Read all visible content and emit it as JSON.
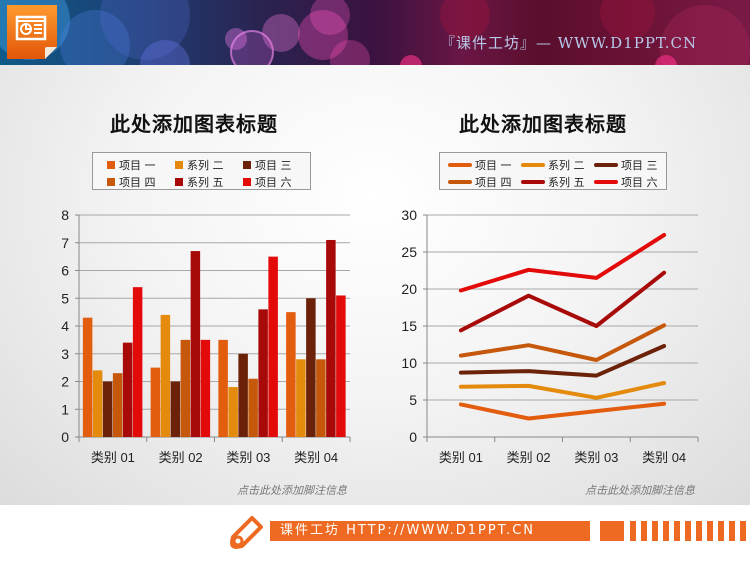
{
  "header": {
    "banner_text": "『课件工坊』— WWW.D1PPT.CN",
    "app_icon": "presentation-icon"
  },
  "colors": {
    "s1": "#e35d0e",
    "s2": "#e48a0c",
    "s3": "#6b2208",
    "s4": "#c5580a",
    "s5": "#a80a0a",
    "s6": "#e30a0a",
    "footer_orange": "#ee6a22"
  },
  "left_chart": {
    "title": "此处添加图表标题",
    "legend": [
      "项目 一",
      "系列 二",
      "项目 三",
      "项目 四",
      "系列 五",
      "项目 六"
    ],
    "y_ticks": [
      "0",
      "1",
      "2",
      "3",
      "4",
      "5",
      "6",
      "7",
      "8"
    ],
    "categories": [
      "类别 01",
      "类别 02",
      "类别 03",
      "类别 04"
    ],
    "footnote": "点击此处添加脚注信息"
  },
  "right_chart": {
    "title": "此处添加图表标题",
    "legend": [
      "项目 一",
      "系列 二",
      "项目 三",
      "项目 四",
      "系列 五",
      "项目 六"
    ],
    "y_ticks": [
      "0",
      "5",
      "10",
      "15",
      "20",
      "25",
      "30"
    ],
    "categories": [
      "类别 01",
      "类别 02",
      "类别 03",
      "类别 04"
    ],
    "footnote": "点击此处添加脚注信息"
  },
  "footer": {
    "text": "课件工坊 HTTP://WWW.D1PPT.CN",
    "icon": "pencil-icon"
  },
  "chart_data": [
    {
      "type": "bar",
      "title": "此处添加图表标题",
      "categories": [
        "类别 01",
        "类别 02",
        "类别 03",
        "类别 04"
      ],
      "series": [
        {
          "name": "项目 一",
          "values": [
            4.3,
            2.5,
            3.5,
            4.5
          ]
        },
        {
          "name": "系列 二",
          "values": [
            2.4,
            4.4,
            1.8,
            2.8
          ]
        },
        {
          "name": "项目 三",
          "values": [
            2.0,
            2.0,
            3.0,
            5.0
          ]
        },
        {
          "name": "项目 四",
          "values": [
            2.3,
            3.5,
            2.1,
            2.8
          ]
        },
        {
          "name": "系列 五",
          "values": [
            3.4,
            6.7,
            4.6,
            7.1
          ]
        },
        {
          "name": "项目 六",
          "values": [
            5.4,
            3.5,
            6.5,
            5.1
          ]
        }
      ],
      "xlabel": "",
      "ylabel": "",
      "ylim": [
        0,
        8
      ],
      "grid": true,
      "legend_position": "top"
    },
    {
      "type": "line",
      "title": "此处添加图表标题",
      "categories": [
        "类别 01",
        "类别 02",
        "类别 03",
        "类别 04"
      ],
      "series": [
        {
          "name": "项目 一",
          "values": [
            4.4,
            2.5,
            3.5,
            4.5
          ]
        },
        {
          "name": "系列 二",
          "values": [
            6.8,
            6.9,
            5.3,
            7.3
          ]
        },
        {
          "name": "项目 三",
          "values": [
            8.7,
            8.9,
            8.3,
            12.3
          ]
        },
        {
          "name": "项目 四",
          "values": [
            11.0,
            12.4,
            10.4,
            15.1
          ]
        },
        {
          "name": "系列 五",
          "values": [
            14.4,
            19.1,
            15.0,
            22.2
          ]
        },
        {
          "name": "项目 六",
          "values": [
            19.8,
            22.6,
            21.5,
            27.3
          ]
        }
      ],
      "xlabel": "",
      "ylabel": "",
      "ylim": [
        0,
        30
      ],
      "grid": true,
      "legend_position": "top"
    }
  ]
}
